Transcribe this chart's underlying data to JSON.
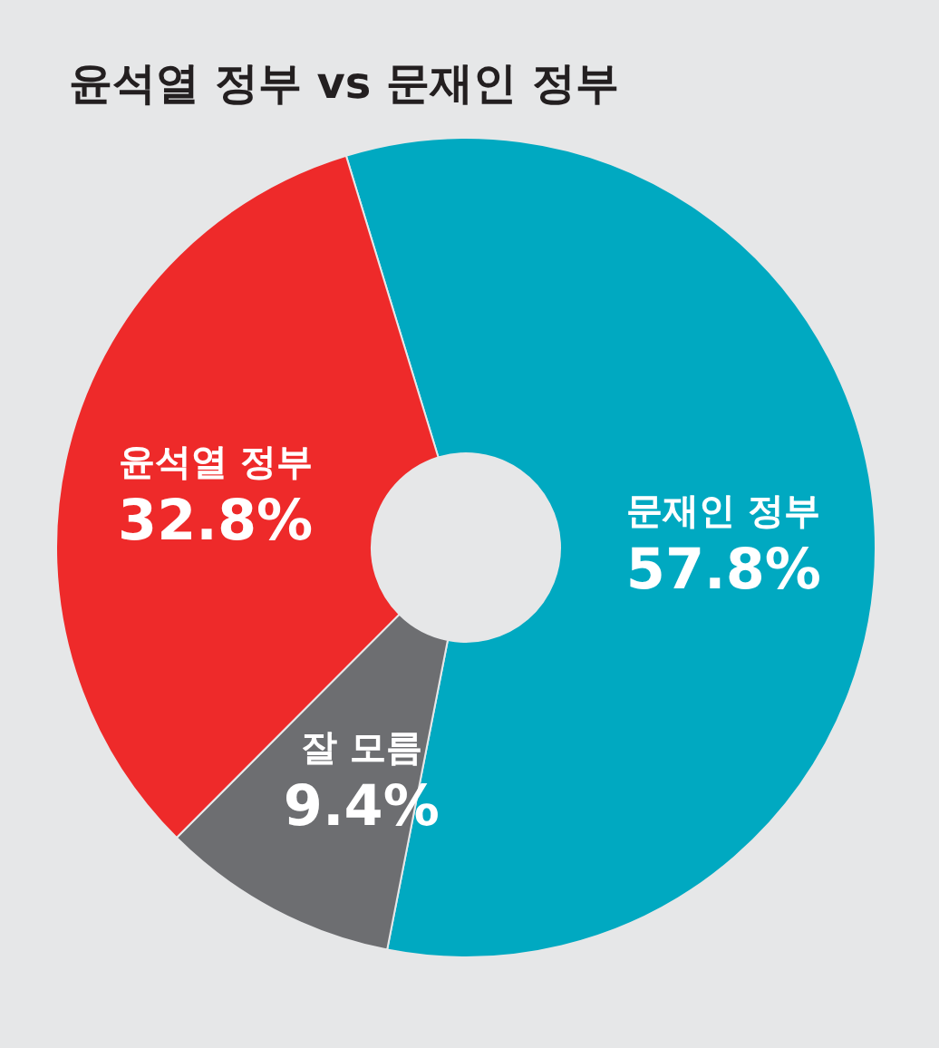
{
  "chart_data": {
    "type": "donut",
    "title": "윤석열 정부 vs 문재인 정부",
    "categories": [
      "문재인 정부",
      "잘 모름",
      "윤석열 정부"
    ],
    "values": [
      57.8,
      9.4,
      32.8
    ],
    "colors": [
      "#00a9c1",
      "#6d6e71",
      "#ee2a2a"
    ],
    "value_labels": [
      "57.8%",
      "9.4%",
      "32.8%"
    ]
  }
}
